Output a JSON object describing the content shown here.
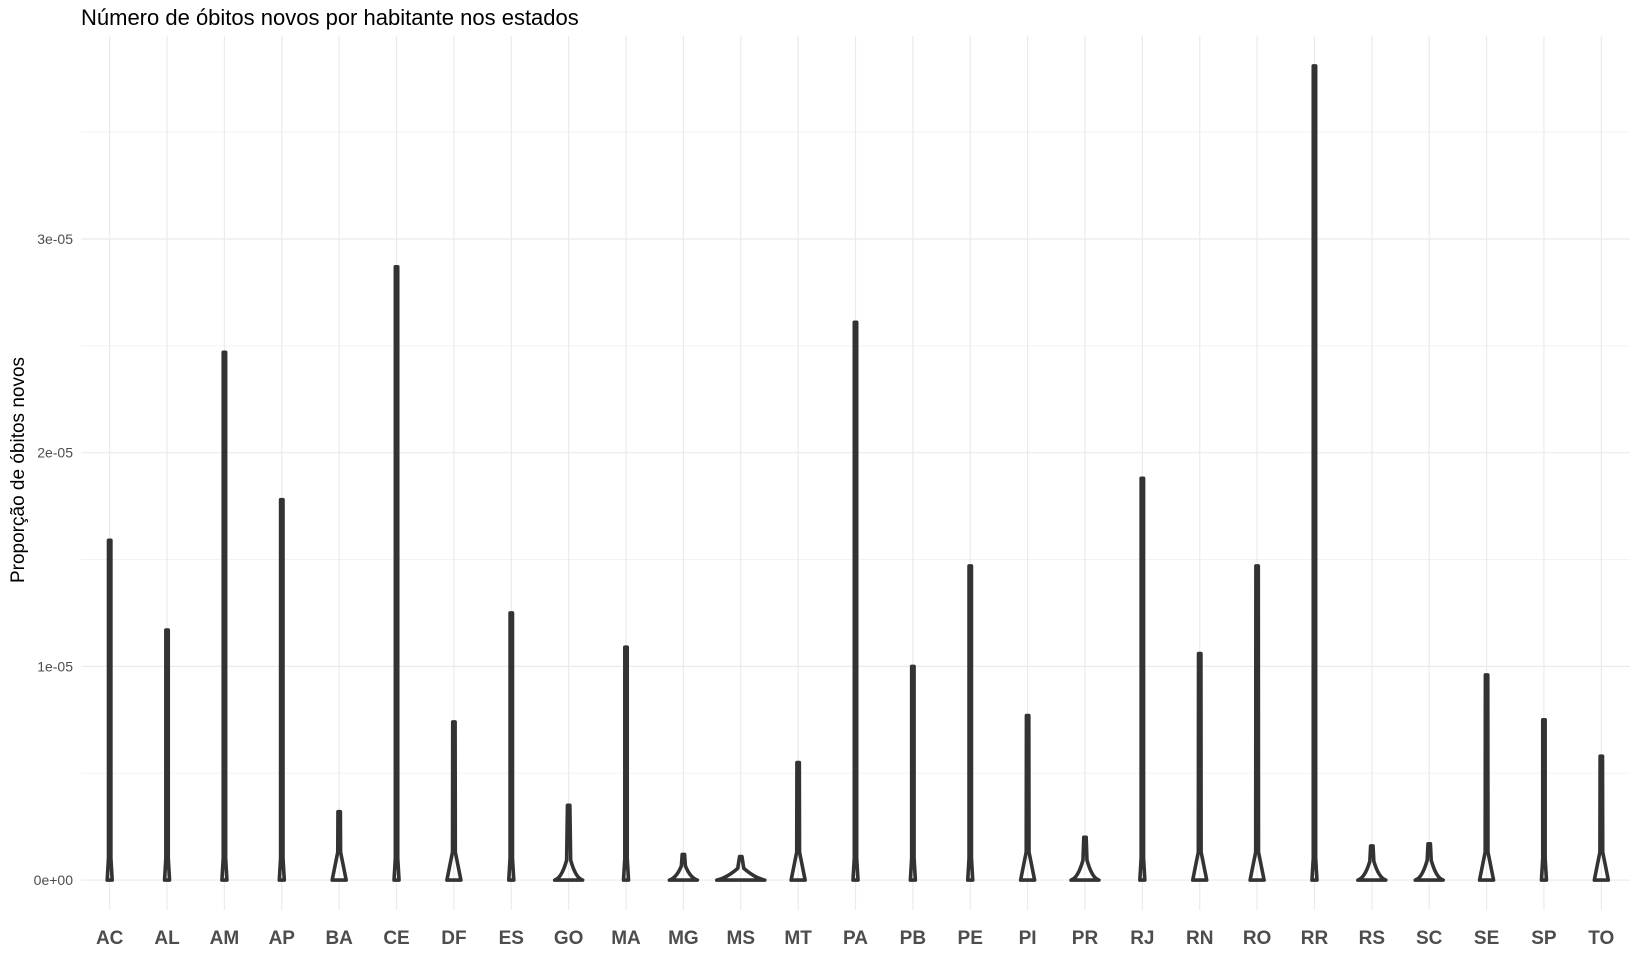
{
  "chart_data": {
    "type": "violin",
    "title": "Número de óbitos novos por habitante nos estados",
    "xlabel": "",
    "ylabel": "Proporção de óbitos novos",
    "ylim": [
      -1.4e-06,
      3.95e-05
    ],
    "yticks": [
      {
        "value": 0,
        "label": "0e+00"
      },
      {
        "value": 1e-05,
        "label": "1e-05"
      },
      {
        "value": 2e-05,
        "label": "2e-05"
      },
      {
        "value": 3e-05,
        "label": "3e-05"
      }
    ],
    "grid": true,
    "legend": "none",
    "line_color": "#333333",
    "categories": [
      "AC",
      "AL",
      "AM",
      "AP",
      "BA",
      "CE",
      "DF",
      "ES",
      "GO",
      "MA",
      "MG",
      "MS",
      "MT",
      "PA",
      "PB",
      "PE",
      "PI",
      "PR",
      "RJ",
      "RN",
      "RO",
      "RR",
      "RS",
      "SC",
      "SE",
      "SP",
      "TO"
    ],
    "series": [
      {
        "category": "AC",
        "max": 1.59e-05,
        "shape": "spike"
      },
      {
        "category": "AL",
        "max": 1.17e-05,
        "shape": "spike"
      },
      {
        "category": "AM",
        "max": 2.47e-05,
        "shape": "spike"
      },
      {
        "category": "AP",
        "max": 1.78e-05,
        "shape": "spike"
      },
      {
        "category": "BA",
        "max": 3.2e-06,
        "shape": "cone"
      },
      {
        "category": "CE",
        "max": 2.87e-05,
        "shape": "spike"
      },
      {
        "category": "DF",
        "max": 7.4e-06,
        "shape": "cone"
      },
      {
        "category": "ES",
        "max": 1.25e-05,
        "shape": "spike"
      },
      {
        "category": "GO",
        "max": 3.5e-06,
        "shape": "wide"
      },
      {
        "category": "MA",
        "max": 1.09e-05,
        "shape": "spike"
      },
      {
        "category": "MG",
        "max": 1.2e-06,
        "shape": "wide"
      },
      {
        "category": "MS",
        "max": 1.1e-06,
        "shape": "flat"
      },
      {
        "category": "MT",
        "max": 5.5e-06,
        "shape": "cone"
      },
      {
        "category": "PA",
        "max": 2.61e-05,
        "shape": "spike"
      },
      {
        "category": "PB",
        "max": 1e-05,
        "shape": "spike"
      },
      {
        "category": "PE",
        "max": 1.47e-05,
        "shape": "spike"
      },
      {
        "category": "PI",
        "max": 7.7e-06,
        "shape": "cone"
      },
      {
        "category": "PR",
        "max": 2e-06,
        "shape": "wide"
      },
      {
        "category": "RJ",
        "max": 1.88e-05,
        "shape": "spike"
      },
      {
        "category": "RN",
        "max": 1.06e-05,
        "shape": "cone"
      },
      {
        "category": "RO",
        "max": 1.47e-05,
        "shape": "cone"
      },
      {
        "category": "RR",
        "max": 3.81e-05,
        "shape": "spike"
      },
      {
        "category": "RS",
        "max": 1.6e-06,
        "shape": "wide"
      },
      {
        "category": "SC",
        "max": 1.7e-06,
        "shape": "wide"
      },
      {
        "category": "SE",
        "max": 9.6e-06,
        "shape": "cone"
      },
      {
        "category": "SP",
        "max": 7.5e-06,
        "shape": "spike"
      },
      {
        "category": "TO",
        "max": 5.8e-06,
        "shape": "cone"
      }
    ]
  }
}
